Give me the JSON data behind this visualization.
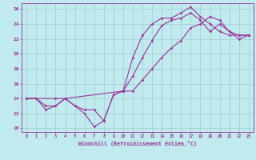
{
  "xlabel": "Windchill (Refroidissement éolien,°C)",
  "background_color": "#c0eaed",
  "grid_color": "#a0ccd0",
  "line_color": "#993399",
  "xlim": [
    -0.5,
    23.5
  ],
  "ylim": [
    9.5,
    26.8
  ],
  "xticks": [
    0,
    1,
    2,
    3,
    4,
    5,
    6,
    7,
    8,
    9,
    10,
    11,
    12,
    13,
    14,
    15,
    16,
    17,
    18,
    19,
    20,
    21,
    22,
    23
  ],
  "yticks": [
    10,
    12,
    14,
    16,
    18,
    20,
    22,
    24,
    26
  ],
  "line1_x": [
    0,
    1,
    2,
    3,
    4,
    5,
    6,
    7,
    8,
    9,
    10,
    11,
    12,
    13,
    14,
    15,
    16,
    17,
    18,
    19,
    20,
    21,
    22,
    23
  ],
  "line1_y": [
    14,
    14,
    13,
    13,
    14,
    13,
    12,
    10.2,
    11,
    14.5,
    15,
    19.5,
    22.5,
    24,
    24.8,
    24.8,
    25.5,
    26.3,
    25,
    24,
    23,
    22.5,
    22.5,
    22.5
  ],
  "line2_x": [
    0,
    1,
    2,
    3,
    4,
    5,
    6,
    7,
    8,
    9,
    10,
    11,
    12,
    13,
    14,
    15,
    16,
    17,
    18,
    19,
    20,
    21,
    22,
    23
  ],
  "line2_y": [
    14,
    14,
    12.5,
    13,
    14,
    13,
    12.5,
    12.5,
    11,
    14.5,
    15,
    17,
    19.5,
    21.8,
    23.8,
    24.5,
    24.8,
    25.5,
    24.5,
    23,
    24,
    23,
    22.5,
    22.5
  ],
  "line3_x": [
    0,
    3,
    4,
    10,
    11,
    12,
    13,
    14,
    15,
    16,
    17,
    18,
    19,
    20,
    21,
    22,
    23
  ],
  "line3_y": [
    14,
    14,
    14,
    15,
    15,
    16.5,
    18,
    19.5,
    20.8,
    21.8,
    23.5,
    24,
    25,
    24.5,
    23,
    22,
    22.5
  ]
}
